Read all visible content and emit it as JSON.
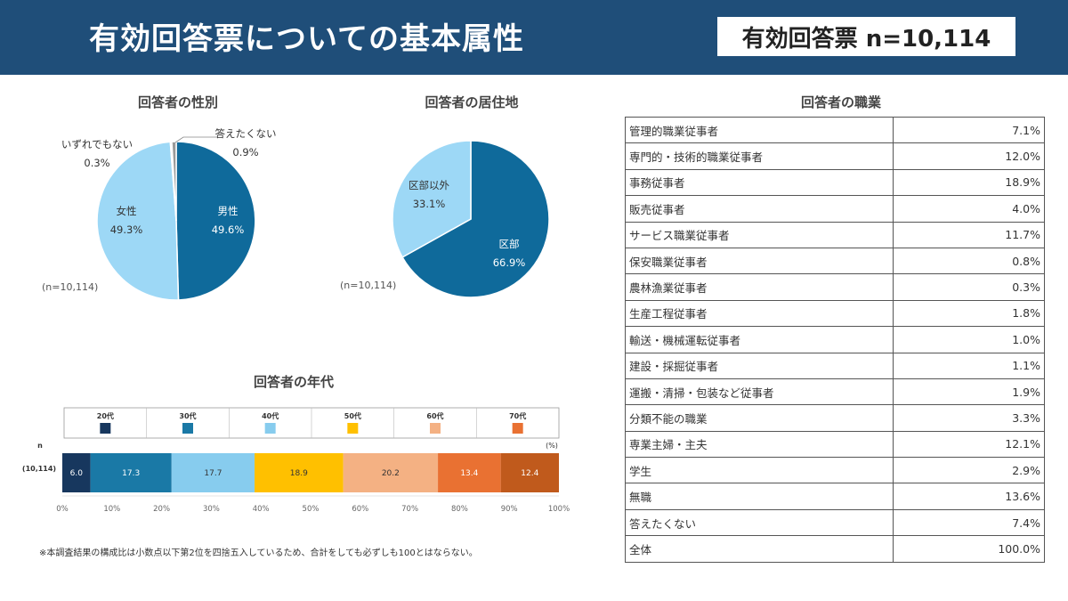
{
  "header": {
    "title": "有効回答票についての基本属性",
    "badge": "有効回答票 n=10,114"
  },
  "gender": {
    "title": "回答者の性別",
    "n_note": "(n=10,114)"
  },
  "residence": {
    "title": "回答者の居住地",
    "n_note": "(n=10,114)"
  },
  "age": {
    "title": "回答者の年代",
    "n_header": "n",
    "row_label": "(10,114)",
    "pct_unit": "(%)"
  },
  "occupation": {
    "title": "回答者の職業",
    "rows": [
      {
        "label": "管理的職業従事者",
        "value": "7.1%"
      },
      {
        "label": "専門的・技術的職業従事者",
        "value": "12.0%"
      },
      {
        "label": "事務従事者",
        "value": "18.9%"
      },
      {
        "label": "販売従事者",
        "value": "4.0%"
      },
      {
        "label": "サービス職業従事者",
        "value": "11.7%"
      },
      {
        "label": "保安職業従事者",
        "value": "0.8%"
      },
      {
        "label": "農林漁業従事者",
        "value": "0.3%"
      },
      {
        "label": "生産工程従事者",
        "value": "1.8%"
      },
      {
        "label": "輸送・機械運転従事者",
        "value": "1.0%"
      },
      {
        "label": "建設・採掘従事者",
        "value": "1.1%"
      },
      {
        "label": "運搬・清掃・包装など従事者",
        "value": "1.9%"
      },
      {
        "label": "分類不能の職業",
        "value": "3.3%"
      },
      {
        "label": "専業主婦・主夫",
        "value": "12.1%"
      },
      {
        "label": "学生",
        "value": "2.9%"
      },
      {
        "label": "無職",
        "value": "13.6%"
      },
      {
        "label": "答えたくない",
        "value": "7.4%"
      },
      {
        "label": "全体",
        "value": "100.0%"
      }
    ]
  },
  "footnote": "※本調査結果の構成比は小数点以下第2位を四捨五入しているため、合計をしても必ずしも100とはならない。",
  "chart_data": [
    {
      "type": "pie",
      "title": "回答者の性別",
      "slices": [
        {
          "name": "男性",
          "value": 49.6,
          "color": "#0f6a9b",
          "label_color": "#ffffff"
        },
        {
          "name": "女性",
          "value": 49.3,
          "color": "#9dd8f6",
          "label_color": "#333333"
        },
        {
          "name": "いずれでもない",
          "value": 0.3,
          "color": "#d0d0d0",
          "label_color": "#333333"
        },
        {
          "name": "答えたくない",
          "value": 0.9,
          "color": "#9a9a9a",
          "label_color": "#333333"
        }
      ]
    },
    {
      "type": "pie",
      "title": "回答者の居住地",
      "slices": [
        {
          "name": "区部",
          "value": 66.9,
          "color": "#0f6a9b",
          "label_color": "#ffffff"
        },
        {
          "name": "区部以外",
          "value": 33.1,
          "color": "#9dd8f6",
          "label_color": "#333333"
        }
      ]
    },
    {
      "type": "bar",
      "subtype": "stacked-horizontal-100",
      "title": "回答者の年代",
      "categories": [
        "(10,114)"
      ],
      "series": [
        {
          "name": "20代",
          "values": [
            6.0
          ],
          "color": "#17375e",
          "label_color": "#ffffff"
        },
        {
          "name": "30代",
          "values": [
            17.3
          ],
          "color": "#1a79a6",
          "label_color": "#ffffff"
        },
        {
          "name": "40代",
          "values": [
            17.7
          ],
          "color": "#87ccee",
          "label_color": "#333333"
        },
        {
          "name": "50代",
          "values": [
            18.9
          ],
          "color": "#ffc000",
          "label_color": "#333333"
        },
        {
          "name": "60代",
          "values": [
            20.2
          ],
          "color": "#f4b183",
          "label_color": "#333333"
        },
        {
          "name": "70代",
          "values": [
            13.4
          ],
          "color": "#e97132",
          "label_color": "#ffffff"
        },
        {
          "name": "",
          "values": [
            12.4
          ],
          "color": "#c05a1c",
          "label_color": "#ffffff"
        }
      ],
      "xlim": [
        0,
        100
      ],
      "xticks": [
        "0%",
        "10%",
        "20%",
        "30%",
        "40%",
        "50%",
        "60%",
        "70%",
        "80%",
        "90%",
        "100%"
      ],
      "legend": "top"
    }
  ]
}
